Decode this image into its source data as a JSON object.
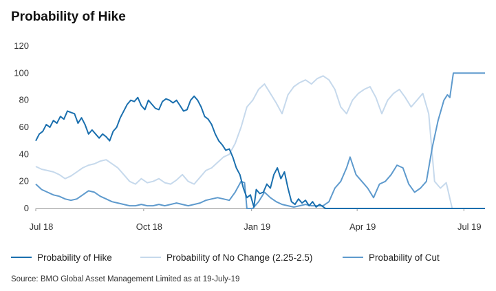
{
  "chart_data": {
    "type": "line",
    "title": "Probability of Hike",
    "xlabel": "",
    "ylabel": "",
    "ylim": [
      0,
      120
    ],
    "yticks": [
      0,
      20,
      40,
      60,
      80,
      100,
      120
    ],
    "xticks": [
      "Jul 18",
      "Oct 18",
      "Jan 19",
      "Apr 19",
      "Jul 19"
    ],
    "xlim": [
      "2018-07-01",
      "2019-07-19"
    ],
    "grid": false,
    "legend_position": "bottom",
    "source": "Source: BMO Global Asset Management Limited as at 19-July-19",
    "series": [
      {
        "name": "Probability of Hike",
        "color": "#1a6fae",
        "points": [
          [
            "2018-07-01",
            50
          ],
          [
            "2018-07-04",
            55
          ],
          [
            "2018-07-07",
            57
          ],
          [
            "2018-07-10",
            62
          ],
          [
            "2018-07-13",
            60
          ],
          [
            "2018-07-16",
            65
          ],
          [
            "2018-07-19",
            63
          ],
          [
            "2018-07-22",
            68
          ],
          [
            "2018-07-25",
            66
          ],
          [
            "2018-07-28",
            72
          ],
          [
            "2018-07-31",
            71
          ],
          [
            "2018-08-03",
            70
          ],
          [
            "2018-08-06",
            63
          ],
          [
            "2018-08-09",
            67
          ],
          [
            "2018-08-12",
            62
          ],
          [
            "2018-08-15",
            55
          ],
          [
            "2018-08-18",
            58
          ],
          [
            "2018-08-21",
            55
          ],
          [
            "2018-08-24",
            52
          ],
          [
            "2018-08-27",
            55
          ],
          [
            "2018-08-30",
            53
          ],
          [
            "2018-09-02",
            50
          ],
          [
            "2018-09-05",
            57
          ],
          [
            "2018-09-08",
            60
          ],
          [
            "2018-09-11",
            67
          ],
          [
            "2018-09-14",
            72
          ],
          [
            "2018-09-17",
            77
          ],
          [
            "2018-09-20",
            80
          ],
          [
            "2018-09-23",
            79
          ],
          [
            "2018-09-26",
            82
          ],
          [
            "2018-09-29",
            76
          ],
          [
            "2018-10-02",
            73
          ],
          [
            "2018-10-05",
            80
          ],
          [
            "2018-10-08",
            77
          ],
          [
            "2018-10-11",
            74
          ],
          [
            "2018-10-14",
            73
          ],
          [
            "2018-10-17",
            79
          ],
          [
            "2018-10-20",
            81
          ],
          [
            "2018-10-23",
            80
          ],
          [
            "2018-10-26",
            78
          ],
          [
            "2018-10-29",
            80
          ],
          [
            "2018-11-01",
            76
          ],
          [
            "2018-11-04",
            72
          ],
          [
            "2018-11-07",
            73
          ],
          [
            "2018-11-10",
            80
          ],
          [
            "2018-11-13",
            83
          ],
          [
            "2018-11-16",
            80
          ],
          [
            "2018-11-19",
            75
          ],
          [
            "2018-11-22",
            68
          ],
          [
            "2018-11-25",
            66
          ],
          [
            "2018-11-28",
            62
          ],
          [
            "2018-12-01",
            55
          ],
          [
            "2018-12-04",
            50
          ],
          [
            "2018-12-07",
            47
          ],
          [
            "2018-12-10",
            43
          ],
          [
            "2018-12-13",
            44
          ],
          [
            "2018-12-16",
            38
          ],
          [
            "2018-12-19",
            30
          ],
          [
            "2018-12-22",
            25
          ],
          [
            "2018-12-25",
            15
          ],
          [
            "2018-12-28",
            8
          ],
          [
            "2018-12-31",
            10
          ],
          [
            "2019-01-03",
            1
          ],
          [
            "2019-01-05",
            14
          ],
          [
            "2019-01-08",
            11
          ],
          [
            "2019-01-11",
            12
          ],
          [
            "2019-01-14",
            18
          ],
          [
            "2019-01-17",
            15
          ],
          [
            "2019-01-20",
            25
          ],
          [
            "2019-01-23",
            30
          ],
          [
            "2019-01-26",
            22
          ],
          [
            "2019-01-29",
            27
          ],
          [
            "2019-02-01",
            15
          ],
          [
            "2019-02-04",
            5
          ],
          [
            "2019-02-07",
            3
          ],
          [
            "2019-02-10",
            7
          ],
          [
            "2019-02-13",
            4
          ],
          [
            "2019-02-16",
            6
          ],
          [
            "2019-02-19",
            2
          ],
          [
            "2019-02-22",
            5
          ],
          [
            "2019-02-25",
            1
          ],
          [
            "2019-02-28",
            3
          ],
          [
            "2019-03-05",
            0
          ],
          [
            "2019-07-19",
            0
          ]
        ]
      },
      {
        "name": "Probability of No Change (2.25-2.5)",
        "color": "#c6d9ec",
        "points": [
          [
            "2018-07-01",
            31
          ],
          [
            "2018-07-06",
            29
          ],
          [
            "2018-07-11",
            28
          ],
          [
            "2018-07-16",
            27
          ],
          [
            "2018-07-21",
            25
          ],
          [
            "2018-07-26",
            22
          ],
          [
            "2018-07-31",
            24
          ],
          [
            "2018-08-05",
            27
          ],
          [
            "2018-08-10",
            30
          ],
          [
            "2018-08-15",
            32
          ],
          [
            "2018-08-20",
            33
          ],
          [
            "2018-08-25",
            35
          ],
          [
            "2018-08-30",
            36
          ],
          [
            "2018-09-04",
            33
          ],
          [
            "2018-09-09",
            30
          ],
          [
            "2018-09-14",
            25
          ],
          [
            "2018-09-19",
            20
          ],
          [
            "2018-09-24",
            18
          ],
          [
            "2018-09-29",
            22
          ],
          [
            "2018-10-04",
            19
          ],
          [
            "2018-10-09",
            20
          ],
          [
            "2018-10-14",
            22
          ],
          [
            "2018-10-19",
            19
          ],
          [
            "2018-10-24",
            18
          ],
          [
            "2018-10-29",
            21
          ],
          [
            "2018-11-03",
            25
          ],
          [
            "2018-11-08",
            20
          ],
          [
            "2018-11-13",
            18
          ],
          [
            "2018-11-18",
            23
          ],
          [
            "2018-11-23",
            28
          ],
          [
            "2018-11-28",
            30
          ],
          [
            "2018-12-03",
            34
          ],
          [
            "2018-12-08",
            38
          ],
          [
            "2018-12-13",
            40
          ],
          [
            "2018-12-18",
            48
          ],
          [
            "2018-12-23",
            60
          ],
          [
            "2018-12-28",
            75
          ],
          [
            "2019-01-02",
            80
          ],
          [
            "2019-01-07",
            88
          ],
          [
            "2019-01-12",
            92
          ],
          [
            "2019-01-17",
            85
          ],
          [
            "2019-01-22",
            78
          ],
          [
            "2019-01-27",
            70
          ],
          [
            "2019-02-01",
            84
          ],
          [
            "2019-02-06",
            90
          ],
          [
            "2019-02-11",
            93
          ],
          [
            "2019-02-16",
            95
          ],
          [
            "2019-02-21",
            92
          ],
          [
            "2019-02-26",
            96
          ],
          [
            "2019-03-03",
            98
          ],
          [
            "2019-03-08",
            95
          ],
          [
            "2019-03-13",
            88
          ],
          [
            "2019-03-18",
            75
          ],
          [
            "2019-03-23",
            70
          ],
          [
            "2019-03-28",
            80
          ],
          [
            "2019-04-02",
            85
          ],
          [
            "2019-04-07",
            88
          ],
          [
            "2019-04-12",
            90
          ],
          [
            "2019-04-17",
            82
          ],
          [
            "2019-04-22",
            70
          ],
          [
            "2019-04-27",
            80
          ],
          [
            "2019-05-02",
            85
          ],
          [
            "2019-05-07",
            88
          ],
          [
            "2019-05-12",
            82
          ],
          [
            "2019-05-17",
            75
          ],
          [
            "2019-05-22",
            80
          ],
          [
            "2019-05-27",
            85
          ],
          [
            "2019-06-01",
            70
          ],
          [
            "2019-06-06",
            20
          ],
          [
            "2019-06-11",
            15
          ],
          [
            "2019-06-16",
            19
          ],
          [
            "2019-06-21",
            0
          ],
          [
            "2019-07-19",
            0
          ]
        ]
      },
      {
        "name": "Probability of Cut",
        "color": "#5e9acd",
        "points": [
          [
            "2018-07-01",
            18
          ],
          [
            "2018-07-06",
            14
          ],
          [
            "2018-07-11",
            12
          ],
          [
            "2018-07-16",
            10
          ],
          [
            "2018-07-21",
            9
          ],
          [
            "2018-07-26",
            7
          ],
          [
            "2018-07-31",
            6
          ],
          [
            "2018-08-05",
            7
          ],
          [
            "2018-08-10",
            10
          ],
          [
            "2018-08-15",
            13
          ],
          [
            "2018-08-20",
            12
          ],
          [
            "2018-08-25",
            9
          ],
          [
            "2018-08-30",
            7
          ],
          [
            "2018-09-04",
            5
          ],
          [
            "2018-09-09",
            4
          ],
          [
            "2018-09-14",
            3
          ],
          [
            "2018-09-19",
            2
          ],
          [
            "2018-09-24",
            2
          ],
          [
            "2018-09-29",
            3
          ],
          [
            "2018-10-04",
            2
          ],
          [
            "2018-10-09",
            2
          ],
          [
            "2018-10-14",
            3
          ],
          [
            "2018-10-19",
            2
          ],
          [
            "2018-10-24",
            3
          ],
          [
            "2018-10-29",
            4
          ],
          [
            "2018-11-03",
            3
          ],
          [
            "2018-11-08",
            2
          ],
          [
            "2018-11-13",
            3
          ],
          [
            "2018-11-18",
            4
          ],
          [
            "2018-11-23",
            6
          ],
          [
            "2018-11-28",
            7
          ],
          [
            "2018-12-03",
            8
          ],
          [
            "2018-12-08",
            7
          ],
          [
            "2018-12-13",
            6
          ],
          [
            "2018-12-18",
            12
          ],
          [
            "2018-12-23",
            20
          ],
          [
            "2018-12-26",
            19
          ],
          [
            "2018-12-28",
            0
          ],
          [
            "2019-01-02",
            0
          ],
          [
            "2019-01-07",
            5
          ],
          [
            "2019-01-12",
            12
          ],
          [
            "2019-01-17",
            8
          ],
          [
            "2019-01-22",
            5
          ],
          [
            "2019-01-27",
            3
          ],
          [
            "2019-02-01",
            2
          ],
          [
            "2019-02-06",
            1
          ],
          [
            "2019-02-11",
            2
          ],
          [
            "2019-02-16",
            3
          ],
          [
            "2019-02-21",
            2
          ],
          [
            "2019-02-26",
            2
          ],
          [
            "2019-03-03",
            2
          ],
          [
            "2019-03-08",
            5
          ],
          [
            "2019-03-13",
            15
          ],
          [
            "2019-03-18",
            20
          ],
          [
            "2019-03-23",
            30
          ],
          [
            "2019-03-26",
            38
          ],
          [
            "2019-03-31",
            25
          ],
          [
            "2019-04-05",
            20
          ],
          [
            "2019-04-10",
            15
          ],
          [
            "2019-04-15",
            8
          ],
          [
            "2019-04-20",
            18
          ],
          [
            "2019-04-25",
            20
          ],
          [
            "2019-04-30",
            25
          ],
          [
            "2019-05-05",
            32
          ],
          [
            "2019-05-10",
            30
          ],
          [
            "2019-05-15",
            18
          ],
          [
            "2019-05-20",
            12
          ],
          [
            "2019-05-25",
            15
          ],
          [
            "2019-05-30",
            20
          ],
          [
            "2019-06-04",
            45
          ],
          [
            "2019-06-09",
            65
          ],
          [
            "2019-06-14",
            80
          ],
          [
            "2019-06-17",
            84
          ],
          [
            "2019-06-19",
            82
          ],
          [
            "2019-06-22",
            100
          ],
          [
            "2019-07-19",
            100
          ]
        ]
      }
    ]
  }
}
